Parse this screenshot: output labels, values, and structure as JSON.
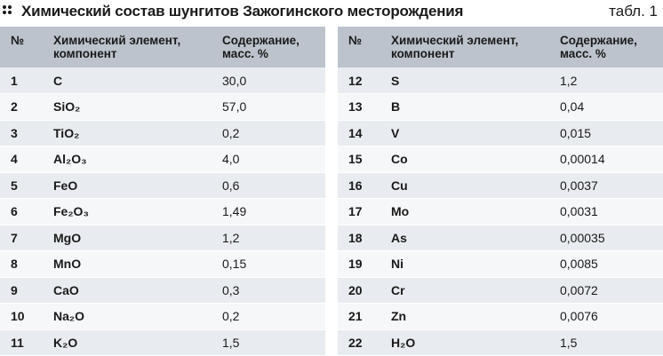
{
  "header": {
    "title": "Химический состав шунгитов Зажогинского месторождения",
    "ref": "табл. 1"
  },
  "columns": {
    "num": "№",
    "element": "Химический элемент, компонент",
    "content": "Содержание, масс. %"
  },
  "left_rows": [
    {
      "num": "1",
      "el": "C",
      "val": "30,0"
    },
    {
      "num": "2",
      "el": "SiO₂",
      "val": "57,0"
    },
    {
      "num": "3",
      "el": "TiO₂",
      "val": "0,2"
    },
    {
      "num": "4",
      "el": "Al₂O₃",
      "val": "4,0"
    },
    {
      "num": "5",
      "el": "FeO",
      "val": "0,6"
    },
    {
      "num": "6",
      "el": "Fe₂O₃",
      "val": "1,49"
    },
    {
      "num": "7",
      "el": "MgO",
      "val": "1,2"
    },
    {
      "num": "8",
      "el": "MnO",
      "val": "0,15"
    },
    {
      "num": "9",
      "el": "CaO",
      "val": "0,3"
    },
    {
      "num": "10",
      "el": "Na₂O",
      "val": "0,2"
    },
    {
      "num": "11",
      "el": "K₂O",
      "val": "1,5"
    }
  ],
  "right_rows": [
    {
      "num": "12",
      "el": "S",
      "val": "1,2"
    },
    {
      "num": "13",
      "el": "B",
      "val": "0,04"
    },
    {
      "num": "14",
      "el": "V",
      "val": "0,015"
    },
    {
      "num": "15",
      "el": "Co",
      "val": "0,00014"
    },
    {
      "num": "16",
      "el": "Cu",
      "val": "0,0037"
    },
    {
      "num": "17",
      "el": "Mo",
      "val": "0,0031"
    },
    {
      "num": "18",
      "el": "As",
      "val": "0,00035"
    },
    {
      "num": "19",
      "el": "Ni",
      "val": "0,0085"
    },
    {
      "num": "20",
      "el": "Cr",
      "val": "0,0072"
    },
    {
      "num": "21",
      "el": "Zn",
      "val": "0,0076"
    },
    {
      "num": "22",
      "el": "H₂O",
      "val": "1,5"
    }
  ]
}
